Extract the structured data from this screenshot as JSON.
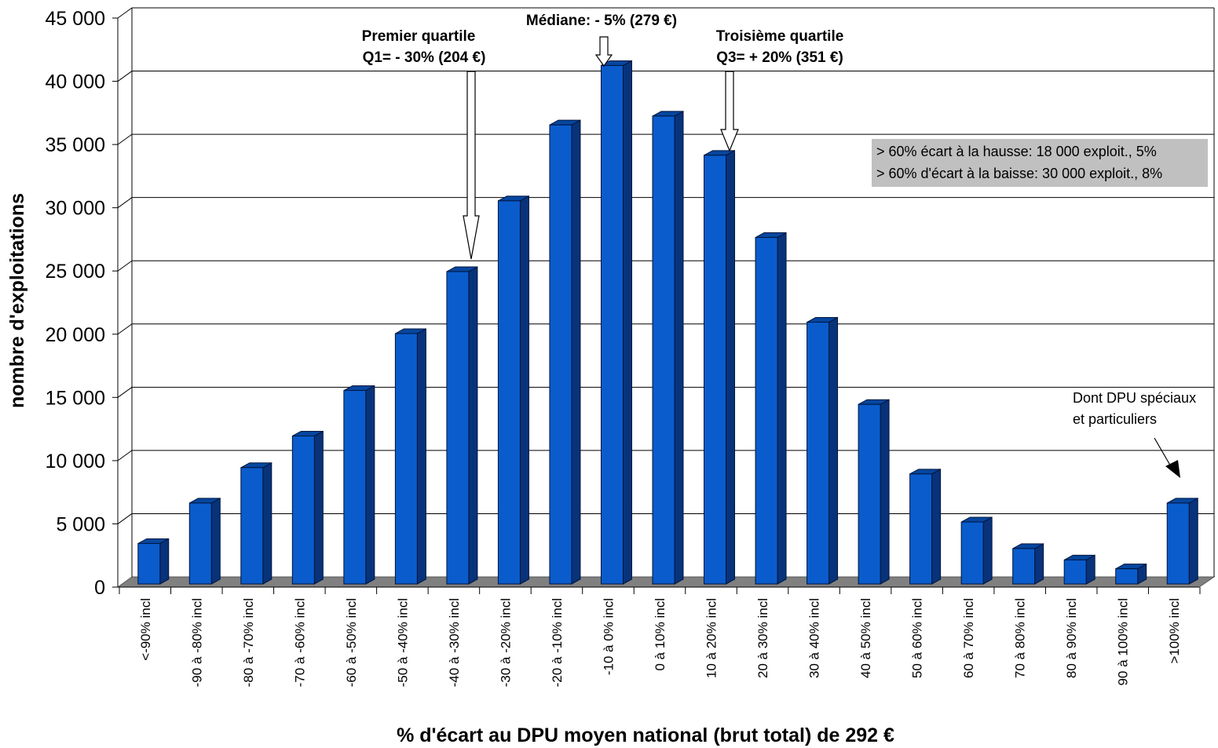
{
  "chart_data": {
    "type": "bar",
    "title": "",
    "xlabel": "% d'écart au DPU moyen national (brut total) de 292 €",
    "ylabel": "nombre d'exploitations",
    "ylim": [
      0,
      45000
    ],
    "yticks": [
      0,
      5000,
      10000,
      15000,
      20000,
      25000,
      30000,
      35000,
      40000,
      45000
    ],
    "ytick_labels": [
      "0",
      "5 000",
      "10 000",
      "15 000",
      "20 000",
      "25 000",
      "30 000",
      "35 000",
      "40 000",
      "45 000"
    ],
    "grid": true,
    "legend": "none",
    "bar_color": "#0a5ccc",
    "bar_side_color": "#08337a",
    "floor_color": "#808080",
    "categories": [
      "<-90% incl",
      "-90 à -80% incl",
      "-80 à -70% incl",
      "-70 à -60% incl",
      "-60 à -50% incl",
      "-50 à -40% incl",
      "-40 à -30% incl",
      "-30 à -20% incl",
      "-20 à -10% incl",
      "-10 à 0% incl",
      "0 à 10% incl",
      "10 à 20% incl",
      "20 à 30% incl",
      "30 à 40% incl",
      "40 à 50% incl",
      "50 à 60% incl",
      "60 à 70% incl",
      "70 à 80% incl",
      "80 à 90% incl",
      "90 à 100% incl",
      ">100% incl"
    ],
    "values": [
      3200,
      6400,
      9200,
      11700,
      15300,
      19800,
      24700,
      30300,
      36300,
      41000,
      37000,
      33900,
      27400,
      20700,
      14200,
      8700,
      4900,
      2800,
      1900,
      1200,
      6400
    ],
    "annotations": {
      "q1_line1": "Premier quartile",
      "q1_line2": "Q1= - 30% (204 €)",
      "median": "Médiane: - 5% (279 €)",
      "q3_line1": "Troisième quartile",
      "q3_line2": "Q3= + 20% (351 €)",
      "box_line1": "> 60% écart à la hausse: 18 000 exploit., 5%",
      "box_line2": "> 60% d'écart à la baisse: 30 000 exploit., 8%",
      "special_line1": "Dont DPU spéciaux",
      "special_line2": "et particuliers"
    },
    "annotation_box_color": "#c0c0c0"
  }
}
